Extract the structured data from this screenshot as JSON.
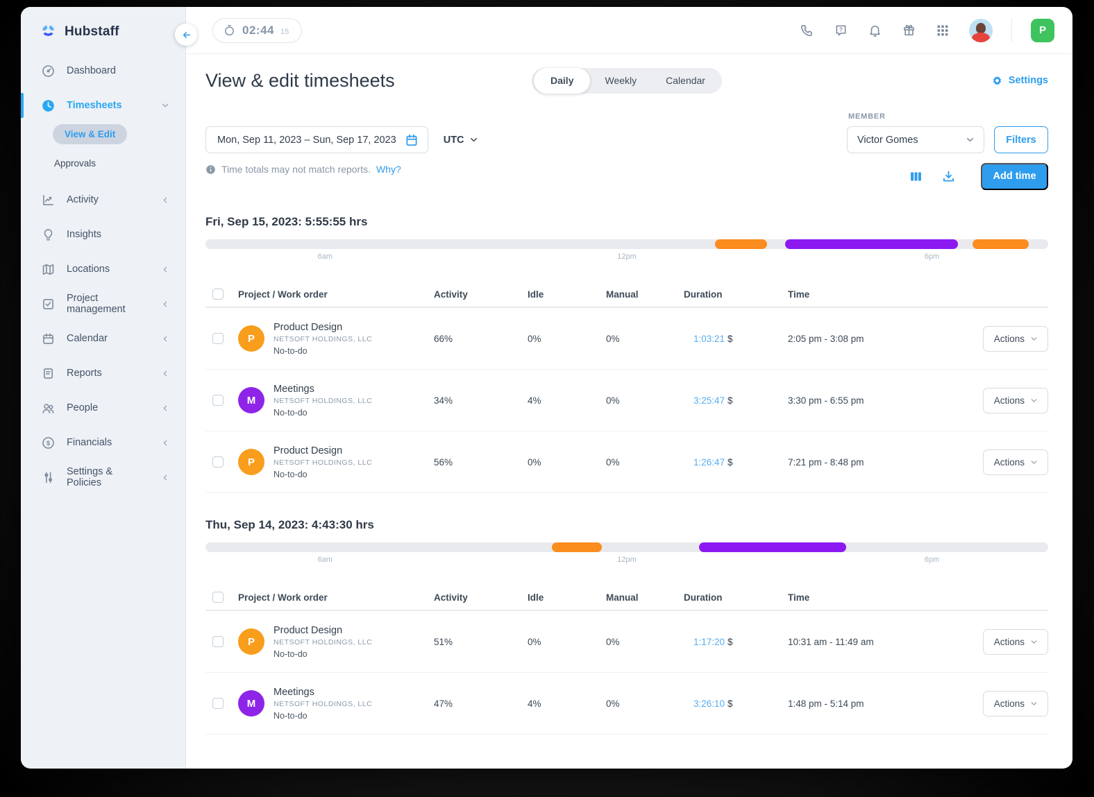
{
  "colors": {
    "accent": "#2f9ded",
    "orange": "#fb8c1e",
    "purple": "#8c1af0",
    "avatar_orange": "#f99d1c",
    "avatar_purple": "#8e24e8",
    "green": "#3ec35f",
    "duration_blue": "#55adf0"
  },
  "topbar": {
    "timer_time": "02:44",
    "timer_seconds": "15",
    "org_badge": "P"
  },
  "sidebar": {
    "brand": "Hubstaff",
    "items": [
      {
        "label": "Dashboard"
      },
      {
        "label": "Timesheets"
      },
      {
        "label": "Activity"
      },
      {
        "label": "Insights"
      },
      {
        "label": "Locations"
      },
      {
        "label": "Project management"
      },
      {
        "label": "Calendar"
      },
      {
        "label": "Reports"
      },
      {
        "label": "People"
      },
      {
        "label": "Financials"
      },
      {
        "label": "Settings & Policies"
      }
    ],
    "sub_items": [
      {
        "label": "View & Edit"
      },
      {
        "label": "Approvals"
      }
    ]
  },
  "header": {
    "title": "View & edit timesheets",
    "tabs": [
      {
        "label": "Daily"
      },
      {
        "label": "Weekly"
      },
      {
        "label": "Calendar"
      }
    ],
    "settings": "Settings"
  },
  "controls": {
    "date_range": "Mon, Sep 11, 2023 – Sun, Sep 17, 2023",
    "timezone": "UTC",
    "notice": "Time totals may not match reports.",
    "notice_link": "Why?",
    "member_label": "MEMBER",
    "member_value": "Victor Gomes",
    "filters_button": "Filters",
    "add_time_button": "Add time"
  },
  "table": {
    "headers": [
      "Project / Work order",
      "Activity",
      "Idle",
      "Manual",
      "Duration",
      "Time"
    ],
    "actions_label": "Actions"
  },
  "days": [
    {
      "title": "Fri, Sep 15, 2023: 5:55:55 hrs",
      "timeline": {
        "ticks": [
          {
            "label": "6am",
            "pos": 14.2
          },
          {
            "label": "12pm",
            "pos": 50
          },
          {
            "label": "6pm",
            "pos": 86.2
          }
        ],
        "segments": [
          {
            "start": 60.5,
            "end": 66.6,
            "color": "orange"
          },
          {
            "start": 68.8,
            "end": 89.3,
            "color": "purple"
          },
          {
            "start": 91.0,
            "end": 97.7,
            "color": "orange"
          }
        ]
      },
      "rows": [
        {
          "project": "Product Design",
          "client": "NETSOFT HOLDINGS, LLC",
          "task": "No-to-do",
          "avatar_letter": "P",
          "avatar_color": "avatar_orange",
          "activity": "66%",
          "idle": "0%",
          "manual": "0%",
          "duration": "1:03:21",
          "currency": "$",
          "time": "2:05 pm - 3:08 pm"
        },
        {
          "project": "Meetings",
          "client": "NETSOFT HOLDINGS, LLC",
          "task": "No-to-do",
          "avatar_letter": "M",
          "avatar_color": "avatar_purple",
          "activity": "34%",
          "idle": "4%",
          "manual": "0%",
          "duration": "3:25:47",
          "currency": "$",
          "time": "3:30 pm - 6:55 pm"
        },
        {
          "project": "Product Design",
          "client": "NETSOFT HOLDINGS, LLC",
          "task": "No-to-do",
          "avatar_letter": "P",
          "avatar_color": "avatar_orange",
          "activity": "56%",
          "idle": "0%",
          "manual": "0%",
          "duration": "1:26:47",
          "currency": "$",
          "time": "7:21 pm - 8:48 pm"
        }
      ]
    },
    {
      "title": "Thu, Sep 14, 2023: 4:43:30 hrs",
      "timeline": {
        "ticks": [
          {
            "label": "6am",
            "pos": 14.2
          },
          {
            "label": "12pm",
            "pos": 50
          },
          {
            "label": "6pm",
            "pos": 86.2
          }
        ],
        "segments": [
          {
            "start": 41.1,
            "end": 47.0,
            "color": "orange"
          },
          {
            "start": 58.6,
            "end": 76.0,
            "color": "purple"
          }
        ]
      },
      "rows": [
        {
          "project": "Product Design",
          "client": "NETSOFT HOLDINGS, LLC",
          "task": "No-to-do",
          "avatar_letter": "P",
          "avatar_color": "avatar_orange",
          "activity": "51%",
          "idle": "0%",
          "manual": "0%",
          "duration": "1:17:20",
          "currency": "$",
          "time": "10:31 am - 11:49 am"
        },
        {
          "project": "Meetings",
          "client": "NETSOFT HOLDINGS, LLC",
          "task": "No-to-do",
          "avatar_letter": "M",
          "avatar_color": "avatar_purple",
          "activity": "47%",
          "idle": "4%",
          "manual": "0%",
          "duration": "3:26:10",
          "currency": "$",
          "time": "1:48 pm - 5:14 pm"
        }
      ]
    }
  ]
}
